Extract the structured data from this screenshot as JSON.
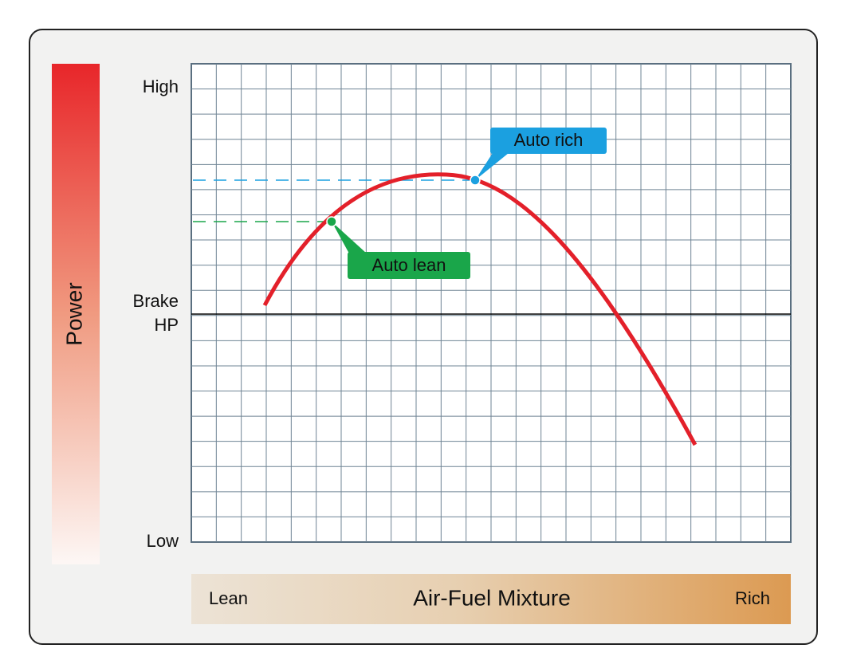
{
  "y_axis": {
    "title": "Power",
    "high": "High",
    "reference": "Brake HP",
    "low": "Low"
  },
  "x_axis": {
    "title": "Air-Fuel Mixture",
    "left": "Lean",
    "right": "Rich"
  },
  "callouts": {
    "rich": "Auto rich",
    "lean": "Auto lean"
  }
}
